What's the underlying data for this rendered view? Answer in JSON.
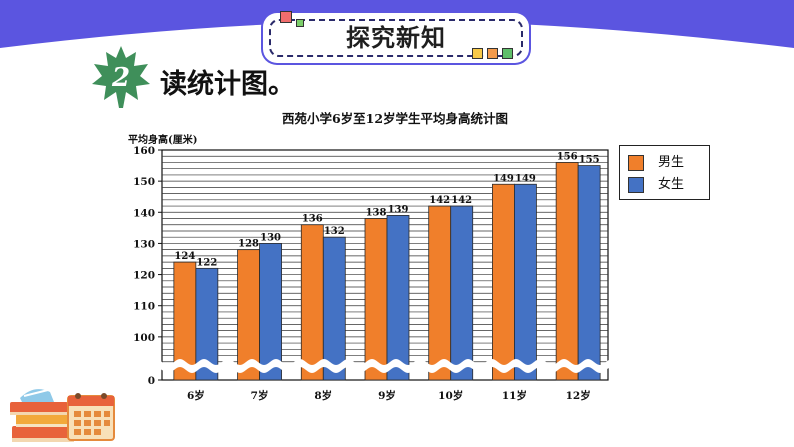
{
  "banner": {
    "title": "探究新知"
  },
  "section": {
    "number": "2",
    "heading": "读统计图。"
  },
  "colors": {
    "boys": "#f07f2b",
    "girls": "#4472c4",
    "accent": "#5b55e0"
  },
  "chart_data": {
    "type": "bar",
    "title": "西苑小学6岁至12岁学生平均身高统计图",
    "ylabel": "平均身高(厘米)",
    "xlabel": "",
    "categories": [
      "6岁",
      "7岁",
      "8岁",
      "9岁",
      "10岁",
      "11岁",
      "12岁"
    ],
    "series": [
      {
        "name": "男生",
        "values": [
          124,
          128,
          136,
          138,
          142,
          149,
          156
        ]
      },
      {
        "name": "女生",
        "values": [
          122,
          130,
          132,
          139,
          142,
          149,
          155
        ]
      }
    ],
    "ylim": [
      90,
      160
    ],
    "ylim_display_floor": 0,
    "yticks": [
      0,
      100,
      110,
      120,
      130,
      140,
      150,
      160
    ],
    "axis_break": true,
    "grid": true,
    "legend": "right"
  }
}
